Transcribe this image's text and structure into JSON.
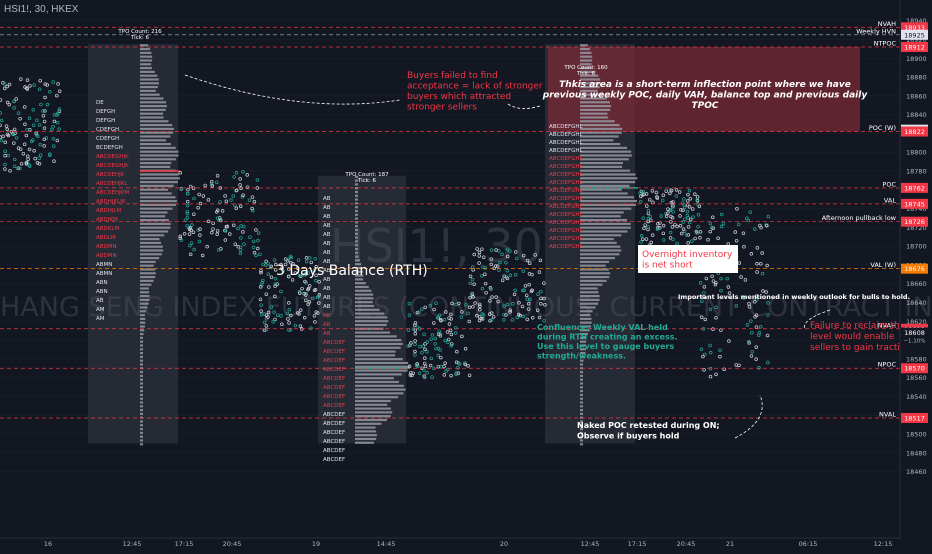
{
  "header": {
    "symbol_title": "HSI1!, 30, HKEX"
  },
  "watermark": {
    "line1": "HSI1!, 30",
    "line2": "HANG SENG INDEX FUTURES (CONTINUOUS: CURRENT CONTRACT IN FRONT)"
  },
  "colors": {
    "bg": "#131722",
    "red": "#f23645",
    "green": "#26a69a",
    "teal": "#22ab94",
    "grid": "#2a2e39",
    "text": "#d1d4dc",
    "box": "#363a45",
    "rect": "#7b2a35"
  },
  "chart_data": {
    "type": "tpo_profile",
    "ylim": [
      18444,
      18958
    ],
    "y_ticks": [
      18460,
      18480,
      18500,
      18520,
      18540,
      18560,
      18580,
      18600,
      18620,
      18640,
      18660,
      18680,
      18700,
      18720,
      18740,
      18760,
      18780,
      18800,
      18820,
      18840,
      18860,
      18880,
      18900,
      18920,
      18940
    ],
    "x_tick_labels": [
      "16",
      "12:45",
      "17:15",
      "20:45",
      "19",
      "14:45",
      "20",
      "12:45",
      "17:15",
      "20:45",
      "21",
      "06:15",
      "12:15"
    ],
    "levels": [
      {
        "label": "NVAH",
        "value": 18933,
        "price_label": "18933",
        "color": "#f23645"
      },
      {
        "label": "Weekly HVN",
        "value": 18925,
        "price_label": "18925",
        "color": "#b2b5be"
      },
      {
        "label": "NTPOC",
        "value": 18912,
        "price_label": "18912",
        "color": "#f23645"
      },
      {
        "label": "",
        "value": 18824,
        "price_label": "18824",
        "color": "#b2b5be"
      },
      {
        "label": "POC (W)",
        "value": 18822,
        "price_label": "18822",
        "color": "#f23645"
      },
      {
        "label": "POC",
        "value": 18762,
        "price_label": "18762",
        "color": "#f23645"
      },
      {
        "label": "VAL",
        "value": 18745,
        "price_label": "18745",
        "color": "#f23645"
      },
      {
        "label": "Afternoon pullback low",
        "value": 18726,
        "price_label": "18726",
        "color": "#f23645"
      },
      {
        "label": "VAL (W)",
        "value": 18676,
        "price_label": "18676",
        "color": "#f57c00"
      },
      {
        "label": "NVAH",
        "value": 18612,
        "price_label": "18612",
        "color": "#f23645"
      },
      {
        "label": "NPOC",
        "value": 18570,
        "price_label": "18570",
        "color": "#f23645"
      },
      {
        "label": "NVAL",
        "value": 18517,
        "price_label": "18517",
        "color": "#f23645"
      }
    ],
    "current_price": {
      "value": 18608,
      "price_label": "18608",
      "change": "−1.10%"
    },
    "profiles": [
      {
        "tpo_count": "TPO Count: 216",
        "tick": "Tick: 6",
        "high": 18915,
        "low": 18490
      },
      {
        "tpo_count": "TPO Count: 187",
        "tick": "Tick: 6",
        "high": 18775,
        "low": 18490
      },
      {
        "tpo_count": "TPO Count: 160",
        "tick": "Tick: 6",
        "high": 18915,
        "low": 18490
      }
    ],
    "annotations": [
      {
        "text": "Buyers failed to find acceptance = lack of stronger buyers which attracted stronger sellers",
        "lines": [
          "Buyers failed to find",
          "acceptance = lack of stronger",
          "buyers which attracted",
          "stronger sellers"
        ],
        "color": "#f23645"
      },
      {
        "text": "Thkis area is a short-term inflection point where we have previous weekly POC, daily VAH, balance top and previous daily TPOC",
        "lines": [
          "Thkis area is a short-term inflection point where we have",
          "previous weekly POC, daily VAH, balance top and previous daily",
          "TPOC"
        ],
        "color": "#ffffff"
      },
      {
        "text": "3 Days Balance (RTH)",
        "lines": [
          "3 Days Balance (RTH)"
        ],
        "color": "#ffffff"
      },
      {
        "text": "Overnight inventory is net short",
        "lines": [
          "Overnight inventory",
          "is net short"
        ],
        "color": "#f23645"
      },
      {
        "text": "Important levels mentioned in weekly outlook for bulls to hold.",
        "lines": [
          "Important levels mentioned in weekly outlook for bulls to hold."
        ],
        "color": "#ffffff"
      },
      {
        "text": "Confluence: Weekly VAL held during RTH creating an excess. Use this level to gauge buyers strength/weakness.",
        "lines": [
          "Confluence: Weekly VAL held",
          "during RTH creating an excess.",
          "Use this level to gauge buyers",
          "strength/weakness."
        ],
        "color": "#22ab94"
      },
      {
        "text": "Failure to reclaim this level would enable sellers to gain traction",
        "lines": [
          "Failure to reclaim th",
          "level would enable",
          "sellers to gain tracti"
        ],
        "color": "#f23645"
      },
      {
        "text": "Naked POC retested during ON; Observe if buyers hold",
        "lines": [
          "Naked POC retested during ON;",
          "Observe if buyers hold"
        ],
        "color": "#ffffff"
      }
    ]
  }
}
